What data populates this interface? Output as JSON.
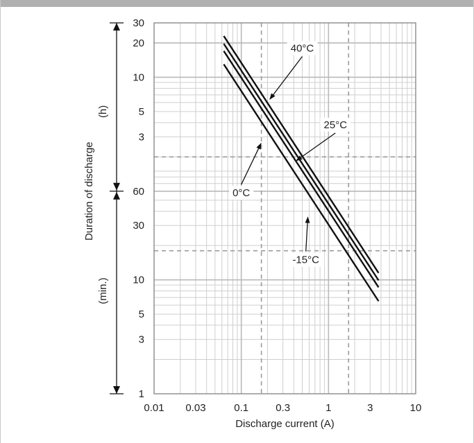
{
  "colors": {
    "top_bar": "#b0b0b0",
    "frame": "#c8c8c8",
    "grid_major": "#b9b9b9",
    "grid_minor": "#cfcfcf",
    "dashed": "#9a9a9a",
    "series": "#111111",
    "label_bg": "#ffffff"
  },
  "chart_data": {
    "type": "line",
    "x_scale": "log",
    "y_scale": "log",
    "xlim": [
      0.01,
      10
    ],
    "ylim_minutes": [
      1,
      1800
    ],
    "xlabel": "Discharge current (A)",
    "ylabel": "Duration of discharge",
    "x_ticks": [
      {
        "value": 0.01,
        "label": "0.01"
      },
      {
        "value": 0.03,
        "label": "0.03"
      },
      {
        "value": 0.1,
        "label": "0.1"
      },
      {
        "value": 0.3,
        "label": "0.3"
      },
      {
        "value": 1,
        "label": "1"
      },
      {
        "value": 3,
        "label": "3"
      },
      {
        "value": 10,
        "label": "10"
      }
    ],
    "y_ticks_hours": [
      {
        "value_min": 1800,
        "label": "30"
      },
      {
        "value_min": 1200,
        "label": "20"
      },
      {
        "value_min": 600,
        "label": "10"
      },
      {
        "value_min": 300,
        "label": "5"
      },
      {
        "value_min": 180,
        "label": "3"
      }
    ],
    "y_ticks_minutes": [
      {
        "value_min": 60,
        "label": "60"
      },
      {
        "value_min": 30,
        "label": "30"
      },
      {
        "value_min": 10,
        "label": "10"
      },
      {
        "value_min": 5,
        "label": "5"
      },
      {
        "value_min": 3,
        "label": "3"
      },
      {
        "value_min": 1,
        "label": "1"
      }
    ],
    "unit_hours": "(h)",
    "unit_minutes": "(min.)",
    "reference_lines": {
      "x": [
        0.17,
        1.7
      ],
      "y_min": [
        120,
        18
      ]
    },
    "series": [
      {
        "name": "40°C",
        "x": [
          0.063,
          3.75
        ],
        "y_min": [
          1380,
          11.5
        ],
        "label_at": {
          "x": 0.5,
          "y_min": 1080
        },
        "pointer": {
          "x": 0.21,
          "y_min": 380
        }
      },
      {
        "name": "25°C",
        "x": [
          0.063,
          3.75
        ],
        "y_min": [
          1180,
          9.9
        ],
        "label_at": {
          "x": 1.2,
          "y_min": 230
        },
        "pointer": {
          "x": 0.42,
          "y_min": 110
        }
      },
      {
        "name": "0°C",
        "x": [
          0.063,
          3.75
        ],
        "y_min": [
          1020,
          8.6
        ],
        "label_at": {
          "x": 0.1,
          "y_min": 58
        },
        "pointer": {
          "x": 0.17,
          "y_min": 160
        }
      },
      {
        "name": "-15°C",
        "x": [
          0.063,
          3.75
        ],
        "y_min": [
          780,
          6.5
        ],
        "label_at": {
          "x": 0.55,
          "y_min": 15
        },
        "pointer": {
          "x": 0.58,
          "y_min": 36
        }
      }
    ]
  }
}
